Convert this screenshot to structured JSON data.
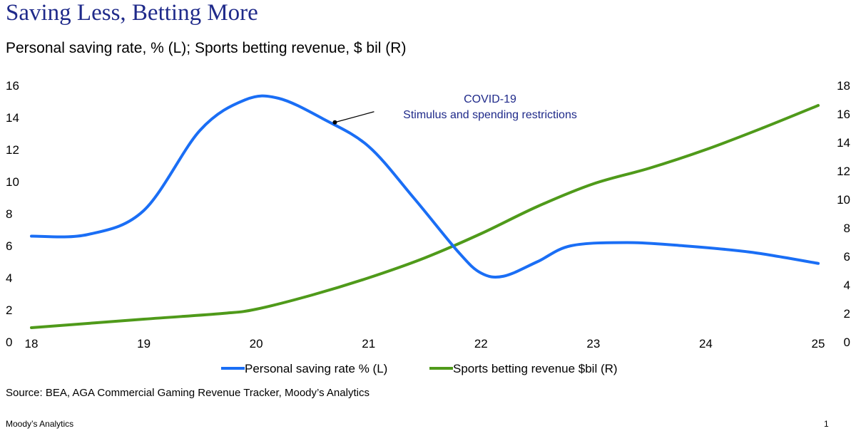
{
  "title": "Saving Less, Betting More",
  "subtitle": "Personal saving rate, % (L); Sports betting revenue, $ bil (R)",
  "source": "Source:  BEA, AGA Commercial Gaming Revenue Tracker, Moody’s Analytics",
  "footer": {
    "left": "Moody’s Analytics",
    "page_number": "1"
  },
  "chart_data": {
    "type": "line",
    "x_ticks": [
      "18",
      "19",
      "20",
      "21",
      "22",
      "23",
      "24",
      "25"
    ],
    "y_left_ticks": [
      "0",
      "2",
      "4",
      "6",
      "8",
      "10",
      "12",
      "14",
      "16"
    ],
    "y_right_ticks": [
      "0",
      "2",
      "4",
      "6",
      "8",
      "10",
      "12",
      "14",
      "16",
      "18"
    ],
    "xlim": [
      18,
      25
    ],
    "ylim_left": [
      0,
      16
    ],
    "ylim_right": [
      0,
      18
    ],
    "series": [
      {
        "name": "Personal saving rate % (L)",
        "axis": "left",
        "color": "#1a6ef5",
        "points": [
          [
            18.0,
            6.6
          ],
          [
            18.5,
            6.7
          ],
          [
            19.0,
            8.2
          ],
          [
            19.5,
            13.2
          ],
          [
            19.9,
            15.1
          ],
          [
            20.2,
            15.2
          ],
          [
            20.6,
            13.9
          ],
          [
            21.0,
            12.2
          ],
          [
            21.4,
            9.0
          ],
          [
            21.8,
            5.6
          ],
          [
            22.0,
            4.3
          ],
          [
            22.2,
            4.1
          ],
          [
            22.5,
            5.0
          ],
          [
            22.8,
            6.0
          ],
          [
            23.3,
            6.2
          ],
          [
            23.8,
            6.0
          ],
          [
            24.4,
            5.6
          ],
          [
            25.0,
            4.9
          ]
        ]
      },
      {
        "name": "Sports betting revenue $bil (R)",
        "axis": "right",
        "color": "#4f9a1a",
        "points": [
          [
            18.0,
            1.0
          ],
          [
            19.0,
            1.6
          ],
          [
            19.7,
            2.0
          ],
          [
            20.0,
            2.3
          ],
          [
            20.5,
            3.3
          ],
          [
            21.0,
            4.5
          ],
          [
            21.5,
            5.9
          ],
          [
            22.0,
            7.6
          ],
          [
            22.5,
            9.5
          ],
          [
            23.0,
            11.1
          ],
          [
            23.5,
            12.2
          ],
          [
            24.0,
            13.5
          ],
          [
            24.5,
            15.0
          ],
          [
            25.0,
            16.6
          ]
        ]
      }
    ],
    "annotation": {
      "lines": [
        "COVID-19",
        "Stimulus and spending restrictions"
      ],
      "point": [
        20.7,
        13.7
      ]
    },
    "grid": false,
    "legend_position": "bottom"
  }
}
